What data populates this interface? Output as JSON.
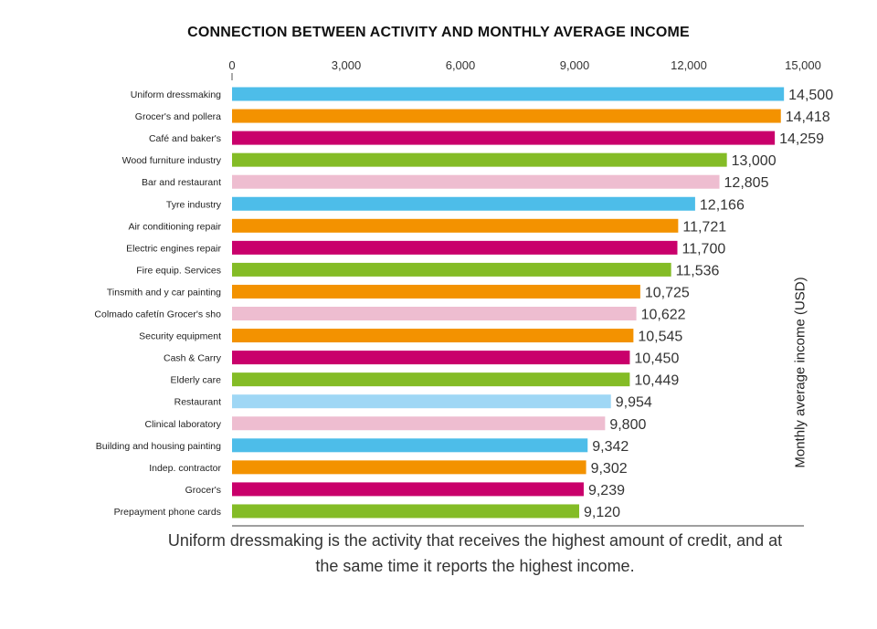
{
  "chart_data": {
    "type": "bar",
    "orientation": "horizontal",
    "title": "CONNECTION BETWEEN ACTIVITY AND MONTHLY AVERAGE INCOME",
    "ylabel": "Monthly average income (USD)",
    "xlim": [
      0,
      15000
    ],
    "ticks": [
      "0",
      "3,000",
      "6,000",
      "9,000",
      "12,000",
      "15,000"
    ],
    "tick_values": [
      0,
      3000,
      6000,
      9000,
      12000,
      15000
    ],
    "grid": false,
    "categories": [
      "Uniform dressmaking",
      "Grocer's and pollera",
      "Café and baker's",
      "Wood furniture industry",
      "Bar and restaurant",
      "Tyre industry",
      "Air conditioning repair",
      "Electric engines repair",
      "Fire equip. Services",
      "Tinsmith and y car painting",
      "Colmado cafetín Grocer's sho",
      "Security equipment",
      "Cash & Carry",
      "Elderly care",
      "Restaurant",
      "Clinical laboratory",
      "Building and housing painting",
      "Indep. contractor",
      "Grocer's",
      "Prepayment phone cards"
    ],
    "values": [
      14500,
      14418,
      14259,
      13000,
      12805,
      12166,
      11721,
      11700,
      11536,
      10725,
      10622,
      10545,
      10450,
      10449,
      9954,
      9800,
      9342,
      9302,
      9239,
      9120
    ],
    "value_labels": [
      "14,500",
      "14,418",
      "14,259",
      "13,000",
      "12,805",
      "12,166",
      "11,721",
      "11,700",
      "11,536",
      "10,725",
      "10,622",
      "10,545",
      "10,450",
      "10,449",
      "9,954",
      "9,800",
      "9,342",
      "9,302",
      "9,239",
      "9,120"
    ],
    "colors": [
      "#4dbde9",
      "#f39200",
      "#c9006b",
      "#84bc26",
      "#eebdd0",
      "#4dbde9",
      "#f39200",
      "#c9006b",
      "#84bc26",
      "#f39200",
      "#eebdd0",
      "#f39200",
      "#c9006b",
      "#84bc26",
      "#9fd7f5",
      "#eebdd0",
      "#4dbde9",
      "#f39200",
      "#c9006b",
      "#84bc26"
    ]
  },
  "caption": "Uniform dressmaking is the activity that receives the highest amount of credit, and at the same time it reports the highest income."
}
